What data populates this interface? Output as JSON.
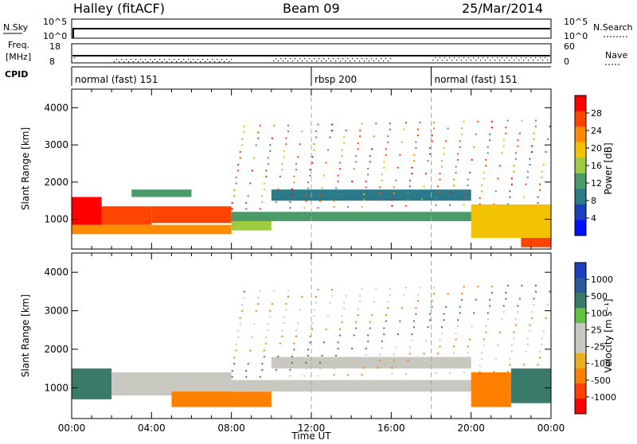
{
  "header": {
    "station": "Halley (fitACF)",
    "beam": "Beam 09",
    "date": "25/Mar/2014"
  },
  "panels": {
    "nsky": {
      "left_label": "N.Sky",
      "left_top": "10^5",
      "left_bottom": "10^0",
      "right_top": "10^5",
      "right_bottom": "10^0",
      "right_label": "N.Search"
    },
    "freq": {
      "left_label_1": "Freq.",
      "left_label_2": "[MHz]",
      "left_top": "18",
      "left_bottom": "8",
      "right_top": "60",
      "right_bottom": "0",
      "right_label": "Nave"
    },
    "cpid": {
      "label": "CPID",
      "segments": [
        {
          "name": "normal (fast) 151",
          "start_hour": 0
        },
        {
          "name": "rbsp 200",
          "start_hour": 12
        },
        {
          "name": "normal (fast) 151",
          "start_hour": 18
        }
      ]
    }
  },
  "colorbars": {
    "power": {
      "label": "Power [dB]",
      "ticks": [
        "28",
        "24",
        "20",
        "16",
        "12",
        "8",
        "4"
      ],
      "colors": [
        "#ff0000",
        "#ff4400",
        "#ff8c00",
        "#f2c200",
        "#9ccc40",
        "#4a9a6a",
        "#2a7a8a",
        "#1a40c0",
        "#0010ff"
      ]
    },
    "velocity": {
      "label": "Velocity [m s⁻¹]",
      "ticks": [
        "1000",
        "500",
        "100",
        "25",
        "-25",
        "-100",
        "-500",
        "-1000"
      ],
      "colors": [
        "#1a40c0",
        "#2a5a9a",
        "#3a7a6a",
        "#60c040",
        "#c8c8c0",
        "#c8c8c0",
        "#e8b020",
        "#ff8000",
        "#ff4000",
        "#ff0000"
      ]
    }
  },
  "chart_data": [
    {
      "type": "heatmap",
      "title": "",
      "ylabel": "Slant Range [km]",
      "xlabel": "",
      "xlim_hours": [
        0,
        24
      ],
      "ylim": [
        200,
        4500
      ],
      "yticks": [
        "4000",
        "3000",
        "2000",
        "1000"
      ],
      "vlines_hours": [
        12,
        18
      ],
      "regions": [
        {
          "x0": 0.0,
          "x1": 1.5,
          "y0": 850,
          "y1": 1600,
          "value": 28
        },
        {
          "x0": 1.5,
          "x1": 4.0,
          "y0": 850,
          "y1": 1350,
          "value": 26
        },
        {
          "x0": 4.0,
          "x1": 8.0,
          "y0": 900,
          "y1": 1350,
          "value": 24
        },
        {
          "x0": 0.0,
          "x1": 8.0,
          "y0": 600,
          "y1": 850,
          "value": 20
        },
        {
          "x0": 3.0,
          "x1": 6.0,
          "y0": 1600,
          "y1": 1800,
          "value": 8
        },
        {
          "x0": 8.0,
          "x1": 10.0,
          "y0": 700,
          "y1": 1100,
          "value": 14
        },
        {
          "x0": 8.0,
          "x1": 22.0,
          "y0": 950,
          "y1": 1200,
          "value": 10
        },
        {
          "x0": 10.0,
          "x1": 20.0,
          "y0": 1500,
          "y1": 1800,
          "value": 6
        },
        {
          "x0": 20.0,
          "x1": 24.0,
          "y0": 500,
          "y1": 1400,
          "value": 18
        },
        {
          "x0": 22.5,
          "x1": 24.0,
          "y0": 250,
          "y1": 500,
          "value": 26
        }
      ],
      "colorbar": {
        "label": "Power [dB]",
        "ticks": [
          28,
          24,
          20,
          16,
          12,
          8,
          4
        ]
      }
    },
    {
      "type": "heatmap",
      "title": "",
      "ylabel": "Slant Range [km]",
      "xlabel": "Time UT",
      "xlim_hours": [
        0,
        24
      ],
      "xticks": [
        "00:00",
        "04:00",
        "08:00",
        "12:00",
        "16:00",
        "20:00",
        "00:00"
      ],
      "ylim": [
        200,
        4500
      ],
      "yticks": [
        "4000",
        "3000",
        "2000",
        "1000"
      ],
      "vlines_hours": [
        12,
        18
      ],
      "regions": [
        {
          "x0": 0.0,
          "x1": 2.0,
          "y0": 700,
          "y1": 1500,
          "value": 200
        },
        {
          "x0": 2.0,
          "x1": 8.0,
          "y0": 800,
          "y1": 1400,
          "value": 0
        },
        {
          "x0": 5.0,
          "x1": 10.0,
          "y0": 500,
          "y1": 900,
          "value": -150
        },
        {
          "x0": 8.0,
          "x1": 22.0,
          "y0": 900,
          "y1": 1200,
          "value": 0
        },
        {
          "x0": 10.0,
          "x1": 20.0,
          "y0": 1500,
          "y1": 1800,
          "value": 0
        },
        {
          "x0": 20.0,
          "x1": 22.0,
          "y0": 500,
          "y1": 1400,
          "value": -300
        },
        {
          "x0": 22.0,
          "x1": 24.0,
          "y0": 600,
          "y1": 1500,
          "value": 200
        }
      ],
      "colorbar": {
        "label": "Velocity [m s⁻¹]",
        "ticks": [
          1000,
          500,
          100,
          25,
          -25,
          -100,
          -500,
          -1000
        ]
      }
    }
  ]
}
